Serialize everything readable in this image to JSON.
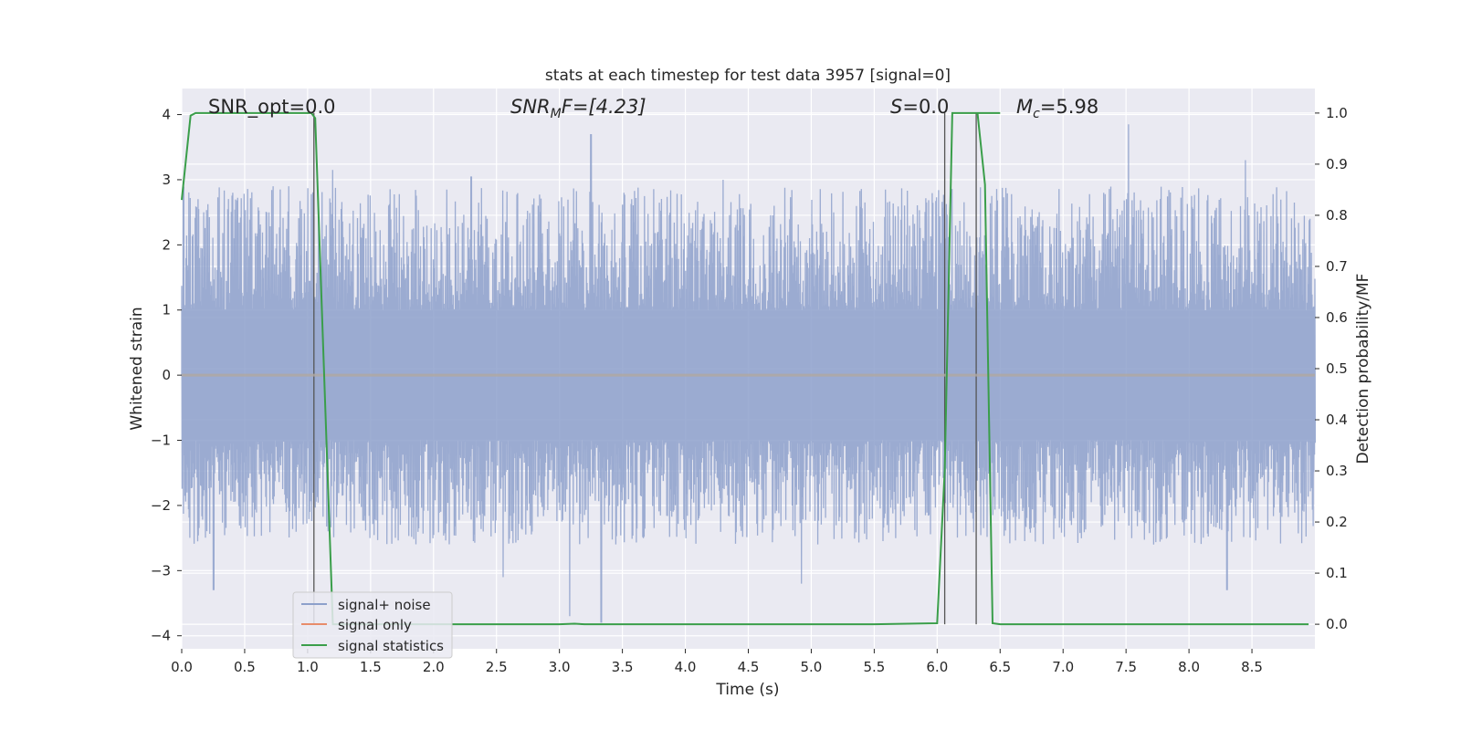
{
  "chart_data": {
    "type": "line",
    "title": "stats at each timestep for test data 3957 [signal=0]",
    "xlabel": "Time (s)",
    "ylabel_left": "Whitened strain",
    "ylabel_right": "Detection probability/MF",
    "xlim": [
      0.0,
      9.0
    ],
    "ylim_left": [
      -4.2,
      4.4
    ],
    "ylim_right": [
      -0.048,
      1.048
    ],
    "x_ticks": [
      "0.0",
      "0.5",
      "1.0",
      "1.5",
      "2.0",
      "2.5",
      "3.0",
      "3.5",
      "4.0",
      "4.5",
      "5.0",
      "5.5",
      "6.0",
      "6.5",
      "7.0",
      "7.5",
      "8.0",
      "8.5"
    ],
    "y_ticks_left": [
      "4",
      "3",
      "2",
      "1",
      "0",
      "−1",
      "−2",
      "−3",
      "−4"
    ],
    "y_ticks_right": [
      "1.0",
      "0.9",
      "0.8",
      "0.7",
      "0.6",
      "0.5",
      "0.4",
      "0.3",
      "0.2",
      "0.1",
      "0.0"
    ],
    "grid": true,
    "legend_placement": "lower-left",
    "annotations": {
      "snr_opt": "SNR_opt=0.0",
      "snr_mf_base": "SNR",
      "snr_mf_sub": "M",
      "snr_mf_rest": "F=[4.23]",
      "s_var": "S",
      "s_rest": "=0.0",
      "mc_var": "M",
      "mc_sub": "c",
      "mc_rest": "=5.98"
    },
    "series": [
      {
        "name": "signal+ noise",
        "axis": "left",
        "color": "#8da0cb",
        "noise_envelope": {
          "typical_low": -1.8,
          "typical_high": 2.3,
          "peak_max": 3.85,
          "peak_min": -3.9
        }
      },
      {
        "name": "signal only",
        "axis": "left",
        "color": "#e88c6a",
        "x": [
          0.0,
          9.0
        ],
        "y": [
          0.0,
          0.0
        ]
      },
      {
        "name": "signal statistics",
        "axis": "right",
        "color": "#3a9e4a",
        "x": [
          0.0,
          0.07,
          0.11,
          0.5,
          1.0,
          1.03,
          1.06,
          1.2,
          1.5,
          2.0,
          2.5,
          3.0,
          3.12,
          3.2,
          3.5,
          4.0,
          5.0,
          5.5,
          6.0,
          6.06,
          6.12,
          6.5,
          6.32,
          6.38,
          6.44,
          6.5,
          7.0,
          7.5,
          8.0,
          8.5,
          8.95
        ],
        "y": [
          0.83,
          0.995,
          1.0,
          1.0,
          1.0,
          1.0,
          0.99,
          0.0,
          0.0,
          0.0,
          0.0,
          0.0,
          0.001,
          0.0,
          0.0,
          0.0,
          0.0,
          0.0,
          0.002,
          0.3,
          1.0,
          1.0,
          1.0,
          0.86,
          0.002,
          0.0,
          0.0,
          0.0,
          0.0,
          0.0,
          0.0
        ]
      }
    ],
    "vertical_markers_x": [
      1.05,
      6.06,
      6.31
    ]
  },
  "legend": [
    {
      "label": "signal+ noise",
      "color": "#8da0cb"
    },
    {
      "label": "signal only",
      "color": "#e88c6a"
    },
    {
      "label": "signal statistics",
      "color": "#3a9e4a"
    }
  ]
}
